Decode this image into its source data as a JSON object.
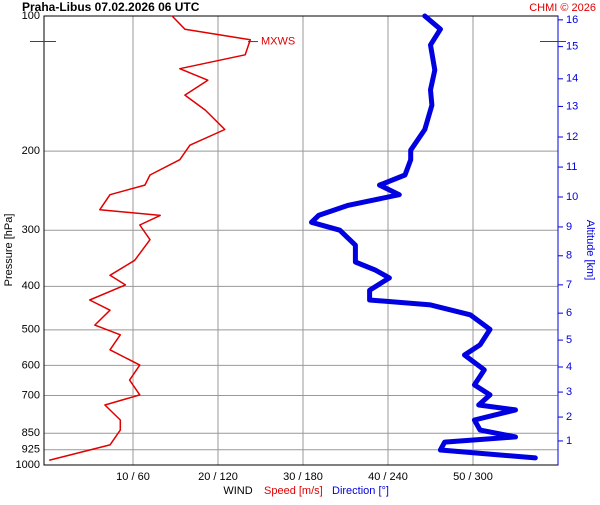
{
  "chart_data": {
    "type": "line",
    "title": "Praha-Libus   07.02.2026 06 UTC",
    "credit": "CHMI © 2026",
    "x_label": "WIND",
    "x_label_speed": "Speed [m/s]",
    "x_label_direction": "Direction [°]",
    "y_label": "Pressure [hPa]",
    "y2_label": "Altitude [km]",
    "annotation": {
      "text": "MXWS",
      "pressure": 114,
      "color": "#e00000"
    },
    "log_y": true,
    "ylim": [
      100,
      1000
    ],
    "yticks": [
      100,
      200,
      300,
      400,
      500,
      600,
      700,
      850,
      925,
      1000
    ],
    "xlim": [
      0,
      60
    ],
    "x2lim": [
      0,
      360
    ],
    "xticks": [
      {
        "value": 10,
        "label": "10 / 60"
      },
      {
        "value": 20,
        "label": "20 / 120"
      },
      {
        "value": 30,
        "label": "30 / 180"
      },
      {
        "value": 40,
        "label": "40 / 240"
      },
      {
        "value": 50,
        "label": "50 / 300"
      }
    ],
    "y2ticks": [
      1,
      2,
      3,
      4,
      5,
      6,
      7,
      8,
      9,
      10,
      11,
      12,
      13,
      14,
      15,
      16
    ],
    "y2tick_pressure": [
      884,
      782,
      688,
      605,
      527,
      459,
      397,
      342,
      295,
      253,
      217,
      186,
      159,
      138,
      117,
      102
    ],
    "y2_color": "#0000e0",
    "grid": true,
    "series": [
      {
        "name": "Speed [m/s]",
        "color": "#e00000",
        "width": 1.5,
        "axis": "x",
        "pressure": [
          100,
          107,
          113,
          122,
          131,
          139,
          150,
          162,
          179,
          194,
          209,
          226,
          238,
          250,
          270,
          278,
          292,
          315,
          350,
          378,
          397,
          429,
          452,
          488,
          513,
          554,
          599,
          647,
          698,
          735,
          794,
          836,
          902,
          975
        ],
        "values": [
          14.6,
          16.1,
          23.8,
          23.2,
          15.5,
          18.8,
          16.1,
          18.5,
          20.8,
          16.7,
          15.5,
          12,
          11.4,
          7.3,
          6.1,
          13.2,
          10.8,
          12,
          10.2,
          7.3,
          9.1,
          4.9,
          7.3,
          5.5,
          8.5,
          7.3,
          10.8,
          9.6,
          10.8,
          6.7,
          8.5,
          8.5,
          7.3,
          0.2
        ]
      },
      {
        "name": "Direction [°]",
        "color": "#0000e0",
        "width": 5,
        "axis": "x2",
        "pressure": [
          100,
          107,
          116,
          132,
          146,
          158,
          179,
          199,
          209,
          226,
          238,
          250,
          264,
          278,
          288,
          300,
          324,
          353,
          368,
          383,
          408,
          429,
          440,
          463,
          499,
          540,
          569,
          614,
          663,
          698,
          735,
          754,
          794,
          836,
          866,
          889,
          926,
          964
        ],
        "values": [
          266,
          277,
          270,
          273,
          270,
          271,
          266,
          256,
          256,
          252,
          234,
          248,
          212,
          191,
          186,
          206,
          217,
          217,
          231,
          241,
          227,
          227,
          270,
          298,
          312,
          305,
          294,
          308,
          301,
          312,
          304,
          330,
          301,
          305,
          330,
          280,
          277,
          344
        ]
      }
    ]
  }
}
